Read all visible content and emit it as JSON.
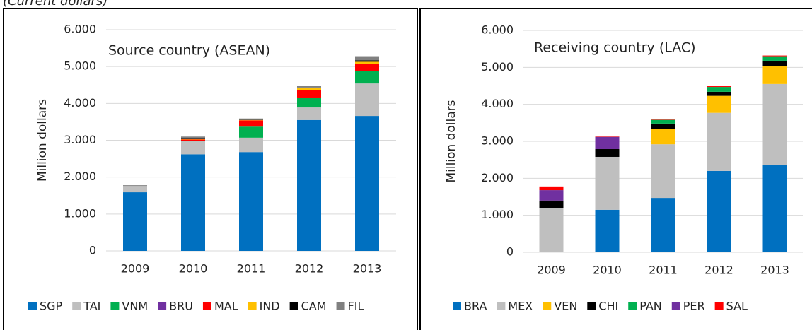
{
  "header": "(Current dollars)",
  "chart_data": [
    {
      "type": "stacked_bar",
      "title": "Source country (ASEAN)",
      "y_label": "Million dollars",
      "categories": [
        "2009",
        "2010",
        "2011",
        "2012",
        "2013"
      ],
      "ylim": [
        0,
        6000
      ],
      "yticks": [
        0,
        {
          "value": 1000,
          "label": "1.000"
        },
        {
          "value": 2000,
          "label": "2.000"
        },
        {
          "value": 3000,
          "label": "3.000"
        },
        {
          "value": 4000,
          "label": "4.000"
        },
        {
          "value": 5000,
          "label": "5.000"
        },
        {
          "value": 6000,
          "label": "6.000"
        }
      ],
      "grid": true,
      "legend": "bottom",
      "series": [
        {
          "name": "SGP",
          "color": "#0070c0",
          "values": [
            1590,
            2620,
            2680,
            3550,
            3660
          ]
        },
        {
          "name": "TAI",
          "color": "#bfbfbf",
          "values": [
            170,
            350,
            390,
            340,
            880
          ]
        },
        {
          "name": "VNM",
          "color": "#00b050",
          "values": [
            0,
            10,
            300,
            270,
            330
          ]
        },
        {
          "name": "BRU",
          "color": "#7030a0",
          "values": [
            0,
            0,
            0,
            0,
            0
          ]
        },
        {
          "name": "MAL",
          "color": "#ff0000",
          "values": [
            0,
            40,
            170,
            210,
            210
          ]
        },
        {
          "name": "IND",
          "color": "#ffc000",
          "values": [
            0,
            10,
            10,
            40,
            50
          ]
        },
        {
          "name": "CAM",
          "color": "#000000",
          "values": [
            0,
            30,
            10,
            20,
            40
          ]
        },
        {
          "name": "FIL",
          "color": "#808080",
          "values": [
            20,
            40,
            30,
            40,
            110
          ]
        }
      ]
    },
    {
      "type": "stacked_bar",
      "title": "Receiving country (LAC)",
      "y_label": "Million dollars",
      "categories": [
        "2009",
        "2010",
        "2011",
        "2012",
        "2013"
      ],
      "ylim": [
        0,
        6000
      ],
      "yticks": [
        0,
        {
          "value": 1000,
          "label": "1.000"
        },
        {
          "value": 2000,
          "label": "2.000"
        },
        {
          "value": 3000,
          "label": "3.000"
        },
        {
          "value": 4000,
          "label": "4.000"
        },
        {
          "value": 5000,
          "label": "5.000"
        },
        {
          "value": 6000,
          "label": "6.000"
        }
      ],
      "grid": true,
      "legend": "bottom",
      "series": [
        {
          "name": "BRA",
          "color": "#0070c0",
          "values": [
            0,
            1150,
            1470,
            2200,
            2370
          ]
        },
        {
          "name": "MEX",
          "color": "#bfbfbf",
          "values": [
            1190,
            1430,
            1450,
            1570,
            2180
          ]
        },
        {
          "name": "VEN",
          "color": "#ffc000",
          "values": [
            0,
            0,
            410,
            460,
            480
          ]
        },
        {
          "name": "CHI",
          "color": "#000000",
          "values": [
            210,
            210,
            150,
            110,
            150
          ]
        },
        {
          "name": "PAN",
          "color": "#00b050",
          "values": [
            0,
            0,
            100,
            130,
            120
          ]
        },
        {
          "name": "PER",
          "color": "#7030a0",
          "values": [
            280,
            330,
            0,
            0,
            0
          ]
        },
        {
          "name": "SAL",
          "color": "#ff0000",
          "values": [
            100,
            10,
            10,
            20,
            20
          ]
        }
      ]
    }
  ]
}
